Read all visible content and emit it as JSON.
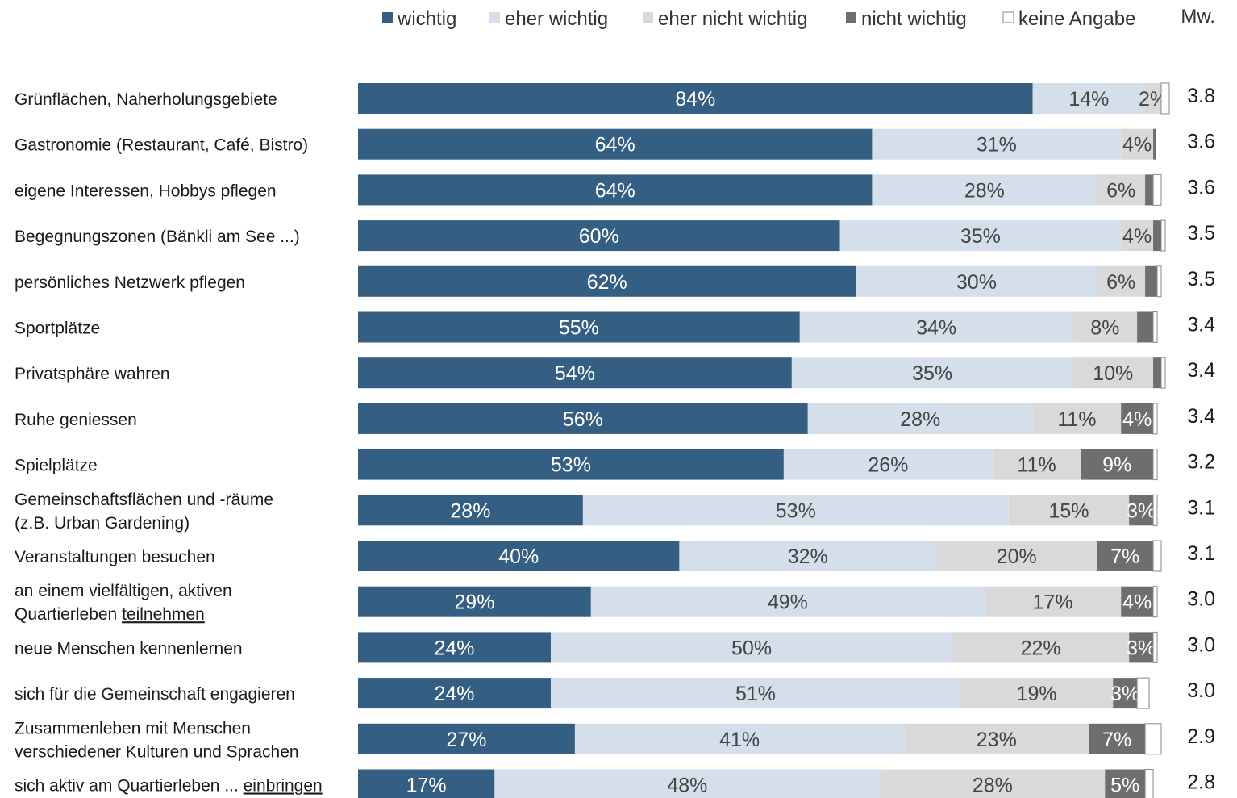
{
  "chart_data": {
    "type": "bar",
    "orientation": "horizontal",
    "stacked": true,
    "mean_header": "Mw.",
    "legend_position": "top",
    "grid": false,
    "xlim": [
      0,
      100
    ],
    "series": [
      {
        "name": "wichtig",
        "color": "#355f82",
        "label_color": "#ffffff",
        "values": [
          84,
          64,
          64,
          60,
          62,
          55,
          54,
          56,
          53,
          28,
          40,
          29,
          24,
          24,
          27,
          17
        ]
      },
      {
        "name": "eher wichtig",
        "color": "#d4dfeb",
        "label_color": "#444444",
        "values": [
          14,
          31,
          28,
          35,
          30,
          34,
          35,
          28,
          26,
          53,
          32,
          49,
          50,
          51,
          41,
          48
        ]
      },
      {
        "name": "eher nicht wichtig",
        "color": "#d9d9d9",
        "label_color": "#444444",
        "values": [
          2,
          4,
          6,
          4,
          6,
          8,
          10,
          11,
          11,
          15,
          20,
          17,
          22,
          19,
          23,
          28
        ]
      },
      {
        "name": "nicht wichtig",
        "color": "#6e6e6e",
        "label_color": "#ffffff",
        "values": [
          0,
          0.3,
          1,
          1,
          1.5,
          2,
          1,
          4,
          9,
          3,
          7,
          4,
          3,
          3,
          7,
          5
        ]
      },
      {
        "name": "keine Angabe",
        "color": "#ffffff",
        "label_color": "#444444",
        "values": [
          1,
          0,
          1,
          0.5,
          0.5,
          0.5,
          0.5,
          0.5,
          0.5,
          0.5,
          1,
          0.5,
          0.5,
          1.5,
          2,
          1
        ]
      }
    ],
    "value_labels": [
      [
        "84%",
        "14%",
        "2%",
        "",
        ""
      ],
      [
        "64%",
        "31%",
        "4%",
        "",
        ""
      ],
      [
        "64%",
        "28%",
        "6%",
        "",
        ""
      ],
      [
        "60%",
        "35%",
        "4%",
        "",
        ""
      ],
      [
        "62%",
        "30%",
        "6%",
        "",
        ""
      ],
      [
        "55%",
        "34%",
        "8%",
        "",
        ""
      ],
      [
        "54%",
        "35%",
        "10%",
        "",
        ""
      ],
      [
        "56%",
        "28%",
        "11%",
        "4%",
        ""
      ],
      [
        "53%",
        "26%",
        "11%",
        "9%",
        ""
      ],
      [
        "28%",
        "53%",
        "15%",
        "3%",
        ""
      ],
      [
        "40%",
        "32%",
        "20%",
        "7%",
        ""
      ],
      [
        "29%",
        "49%",
        "17%",
        "4%",
        ""
      ],
      [
        "24%",
        "50%",
        "22%",
        "3%",
        ""
      ],
      [
        "24%",
        "51%",
        "19%",
        "3%",
        ""
      ],
      [
        "27%",
        "41%",
        "23%",
        "7%",
        ""
      ],
      [
        "17%",
        "48%",
        "28%",
        "5%",
        ""
      ]
    ],
    "categories": [
      {
        "lines": [
          "Grünflächen, Naherholungsgebiete"
        ],
        "underline": ""
      },
      {
        "lines": [
          "Gastronomie (Restaurant, Café, Bistro)"
        ],
        "underline": ""
      },
      {
        "lines": [
          "eigene Interessen, Hobbys pflegen"
        ],
        "underline": ""
      },
      {
        "lines": [
          "Begegnungszonen (Bänkli am See ...)"
        ],
        "underline": ""
      },
      {
        "lines": [
          "persönliches Netzwerk pflegen"
        ],
        "underline": ""
      },
      {
        "lines": [
          "Sportplätze"
        ],
        "underline": ""
      },
      {
        "lines": [
          "Privatsphäre wahren"
        ],
        "underline": ""
      },
      {
        "lines": [
          "Ruhe geniessen"
        ],
        "underline": ""
      },
      {
        "lines": [
          "Spielplätze"
        ],
        "underline": ""
      },
      {
        "lines": [
          "Gemeinschaftsflächen und -räume",
          "(z.B. Urban Gardening)"
        ],
        "underline": ""
      },
      {
        "lines": [
          "Veranstaltungen besuchen"
        ],
        "underline": ""
      },
      {
        "lines": [
          "an einem vielfältigen, aktiven",
          "Quartierleben teilnehmen"
        ],
        "underline": "teilnehmen"
      },
      {
        "lines": [
          "neue Menschen kennenlernen"
        ],
        "underline": ""
      },
      {
        "lines": [
          "sich für die Gemeinschaft engagieren"
        ],
        "underline": ""
      },
      {
        "lines": [
          "Zusammenleben mit Menschen",
          "verschiedener Kulturen und Sprachen"
        ],
        "underline": ""
      },
      {
        "lines": [
          "sich aktiv am Quartierleben ... einbringen"
        ],
        "underline": "einbringen"
      }
    ],
    "means": [
      "3.8",
      "3.6",
      "3.6",
      "3.5",
      "3.5",
      "3.4",
      "3.4",
      "3.4",
      "3.2",
      "3.1",
      "3.1",
      "3.0",
      "3.0",
      "3.0",
      "2.9",
      "2.8"
    ]
  }
}
